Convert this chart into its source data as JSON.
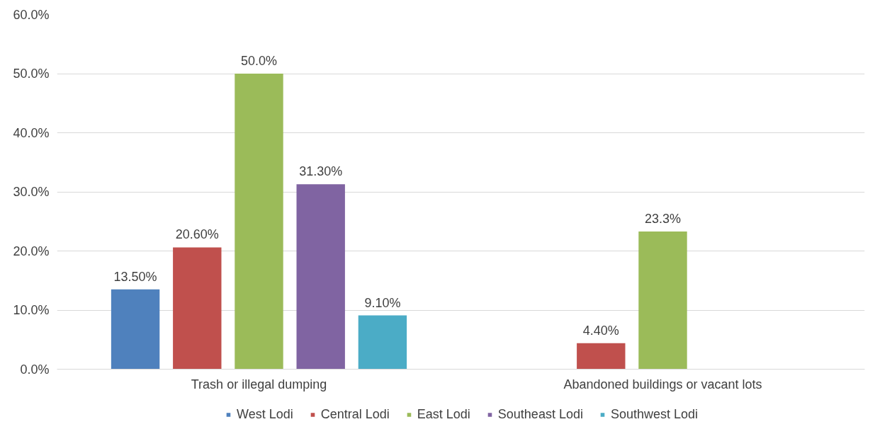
{
  "chart_data": {
    "type": "bar",
    "categories": [
      "Trash or illegal dumping",
      "Abandoned buildings or vacant lots"
    ],
    "series": [
      {
        "name": "West Lodi",
        "color": "#4f81bd",
        "values": [
          13.5,
          null
        ],
        "value_labels": [
          "13.50%",
          null
        ]
      },
      {
        "name": "Central Lodi",
        "color": "#c0504d",
        "values": [
          20.6,
          4.4
        ],
        "value_labels": [
          "20.60%",
          "4.40%"
        ]
      },
      {
        "name": "East Lodi",
        "color": "#9bbb59",
        "values": [
          50.0,
          23.3
        ],
        "value_labels": [
          "50.0%",
          "23.3%"
        ]
      },
      {
        "name": "Southeast Lodi",
        "color": "#8064a2",
        "values": [
          31.3,
          null
        ],
        "value_labels": [
          "31.30%",
          null
        ]
      },
      {
        "name": "Southwest Lodi",
        "color": "#4bacc6",
        "values": [
          9.1,
          null
        ],
        "value_labels": [
          "9.10%",
          null
        ]
      }
    ],
    "ylim": [
      0,
      60
    ],
    "yticks": [
      {
        "value": 0,
        "label": "0.0%"
      },
      {
        "value": 10,
        "label": "10.0%"
      },
      {
        "value": 20,
        "label": "20.0%"
      },
      {
        "value": 30,
        "label": "30.0%"
      },
      {
        "value": 40,
        "label": "40.0%"
      },
      {
        "value": 50,
        "label": "50.0%"
      },
      {
        "value": 60,
        "label": "60.0%"
      }
    ],
    "grid": "y",
    "legend": "bottom"
  }
}
